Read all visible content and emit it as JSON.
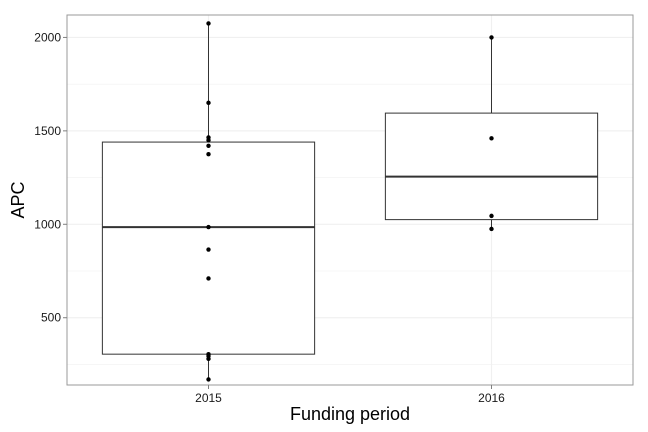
{
  "chart_data": {
    "type": "boxplot",
    "title": "",
    "xlabel": "Funding period",
    "ylabel": "APC",
    "categories": [
      "2015",
      "2016"
    ],
    "ylim": [
      140,
      2120
    ],
    "yticks": [
      500,
      1000,
      1500,
      2000
    ],
    "grid": true,
    "legend": "none",
    "boxes": [
      {
        "category": "2015",
        "min": 170,
        "q1": 305,
        "median": 985,
        "q3": 1440,
        "max": 2075
      },
      {
        "category": "2016",
        "min": 975,
        "q1": 1025,
        "median": 1255,
        "q3": 1595,
        "max": 2000
      }
    ],
    "points": [
      {
        "category": "2015",
        "values": [
          2075,
          1650,
          1465,
          1450,
          1420,
          1375,
          985,
          865,
          710,
          305,
          295,
          280,
          170
        ]
      },
      {
        "category": "2016",
        "values": [
          2000,
          1460,
          1045,
          975
        ]
      }
    ],
    "colors": {
      "box": "#333333",
      "point": "#000000",
      "grid": "#f0f0f0",
      "panel_border": "#999999"
    }
  }
}
